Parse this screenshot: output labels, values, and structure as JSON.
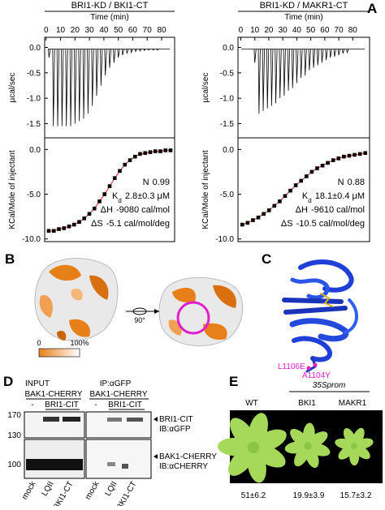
{
  "panel_labels": [
    "A",
    "B",
    "C",
    "D",
    "E"
  ],
  "chart_data": [
    {
      "type": "thermogram",
      "title": "BRI1-KD / BKI1-CT",
      "xlabel": "Time (min)",
      "ylabel": "µcal/sec",
      "x": [
        2,
        5,
        8,
        11,
        14,
        17,
        20,
        23,
        26,
        29,
        32,
        35,
        38,
        41,
        44,
        47,
        50,
        53,
        56,
        59,
        62,
        65,
        68,
        71,
        74,
        77
      ],
      "values": [
        -0.2,
        -1.55,
        -1.55,
        -1.55,
        -1.55,
        -1.55,
        -1.5,
        -1.45,
        -1.4,
        -1.3,
        -1.15,
        -0.95,
        -0.75,
        -0.55,
        -0.4,
        -0.3,
        -0.2,
        -0.15,
        -0.12,
        -0.1,
        -0.08,
        -0.07,
        -0.06,
        -0.05,
        -0.05,
        -0.05
      ],
      "xlim": [
        -1,
        89
      ],
      "xticks": [
        0,
        10,
        20,
        30,
        40,
        50,
        60,
        70,
        80
      ],
      "ylim": [
        -1.78,
        0.2
      ],
      "yticks": [
        {
          "value": 0,
          "label": "0.0"
        },
        {
          "value": -0.5,
          "label": "-0.5"
        },
        {
          "value": -1,
          "label": "-1.0"
        },
        {
          "value": -1.5,
          "label": "-1.5"
        }
      ],
      "color": "#000000"
    },
    {
      "type": "scatter",
      "ylabel": "KCal/Mole of injectant",
      "values": [
        -9.1,
        -9.1,
        -8.9,
        -8.8,
        -8.6,
        -8.4,
        -8.1,
        -7.7,
        -7.2,
        -6.6,
        -5.8,
        -5.0,
        -4.1,
        -3.2,
        -2.4,
        -1.7,
        -1.2,
        -0.8,
        -0.5,
        -0.4,
        -0.3,
        -0.2,
        -0.2,
        -0.1,
        -0.1
      ],
      "ylim": [
        -10.3,
        1.3
      ],
      "yticks": [
        {
          "value": 0,
          "label": "0.0"
        },
        {
          "value": -5,
          "label": "-5.0"
        },
        {
          "value": -10,
          "label": "-10.0"
        }
      ],
      "color": "#000000",
      "fit_color": "#e0201b",
      "annotations": [
        {
          "name": "N",
          "value": "0.99"
        },
        {
          "name": "K",
          "sub": "d",
          "value": "2.8±0.3 μM"
        },
        {
          "name": "ΔH",
          "value": "-9080 cal/mol"
        },
        {
          "name": "ΔS",
          "value": "-5.1 cal/mol/deg"
        }
      ]
    },
    {
      "type": "thermogram",
      "title": "BRI1-KD / MAKR1-CT",
      "xlabel": "Time (min)",
      "ylabel": "µcal/sec",
      "x": [
        10,
        13,
        16,
        19,
        22,
        25,
        28,
        31,
        34,
        37,
        40,
        43,
        46,
        49,
        52,
        55,
        58,
        61,
        64,
        67,
        70,
        73,
        76
      ],
      "values": [
        -0.3,
        -1.3,
        -1.25,
        -1.2,
        -1.15,
        -1.1,
        -1.0,
        -0.95,
        -0.85,
        -0.8,
        -0.7,
        -0.6,
        -0.55,
        -0.45,
        -0.4,
        -0.35,
        -0.3,
        -0.25,
        -0.2,
        -0.18,
        -0.15,
        -0.12,
        -0.1
      ],
      "xlim": [
        -2,
        92
      ],
      "xticks": [
        0,
        10,
        20,
        30,
        40,
        50,
        60,
        70,
        80
      ],
      "ylim": [
        -1.78,
        0.2
      ],
      "yticks": [
        {
          "value": 0,
          "label": "0.0"
        },
        {
          "value": -0.5,
          "label": "-0.5"
        },
        {
          "value": -1,
          "label": "-1.0"
        },
        {
          "value": -1.5,
          "label": "-1.5"
        }
      ],
      "color": "#000000"
    },
    {
      "type": "scatter",
      "ylabel": "KCal/Mole of injectant",
      "values": [
        -8.4,
        -8.2,
        -7.9,
        -7.6,
        -7.2,
        -6.8,
        -6.3,
        -5.8,
        -5.2,
        -4.6,
        -4.0,
        -3.5,
        -3.0,
        -2.5,
        -2.1,
        -1.8,
        -1.5,
        -1.2,
        -1.0,
        -0.8,
        -0.7,
        -0.6,
        -0.5,
        -0.4
      ],
      "ylim": [
        -10.3,
        1.3
      ],
      "yticks": [
        {
          "value": 0,
          "label": "0.0"
        },
        {
          "value": -5,
          "label": "-5.0"
        },
        {
          "value": -10,
          "label": "-10.0"
        }
      ],
      "color": "#000000",
      "fit_color": "#e0201b",
      "annotations": [
        {
          "name": "N",
          "value": "0.88"
        },
        {
          "name": "K",
          "sub": "d",
          "value": "18.1±0.4 μM"
        },
        {
          "name": "ΔH",
          "value": "-9610 cal/mol"
        },
        {
          "name": "ΔS",
          "value": "-10.5 cal/mol/deg"
        }
      ]
    }
  ],
  "panel_b": {
    "rotation": "90°",
    "scale": {
      "min": 0,
      "max": {
        "value": 100,
        "label": "100%"
      }
    }
  },
  "panel_c": {
    "mutations": [
      "L1106E",
      "A1104Y"
    ]
  },
  "panel_d": {
    "input": "INPUT",
    "ip": "IP:αGFP",
    "groups": [
      {
        "protein": "BAK1-CHERRY",
        "minus": "-",
        "plus": "BRI1-CIT"
      },
      {
        "protein": "BAK1-CHERRY",
        "minus": "-",
        "plus": "BRI1-CIT"
      }
    ],
    "mw": [
      170,
      130,
      100
    ],
    "blots": [
      {
        "protein": "BRI1-CIT",
        "antibody": "IB:αGFP"
      },
      {
        "protein": "BAK1-CHERRY",
        "antibody": "IB:αCHERRY"
      }
    ],
    "lanes": [
      "mock",
      "LQII",
      "BKI1-CT",
      "mock",
      "LQII",
      "BKI1-CT"
    ]
  },
  "panel_e": {
    "promoter": "35Sprom",
    "genotypes": [
      "WT",
      "BKI1",
      "MAKR1"
    ],
    "measurements": [
      "51±6.2",
      "19.9±3.9",
      "15.7±3.2"
    ]
  }
}
